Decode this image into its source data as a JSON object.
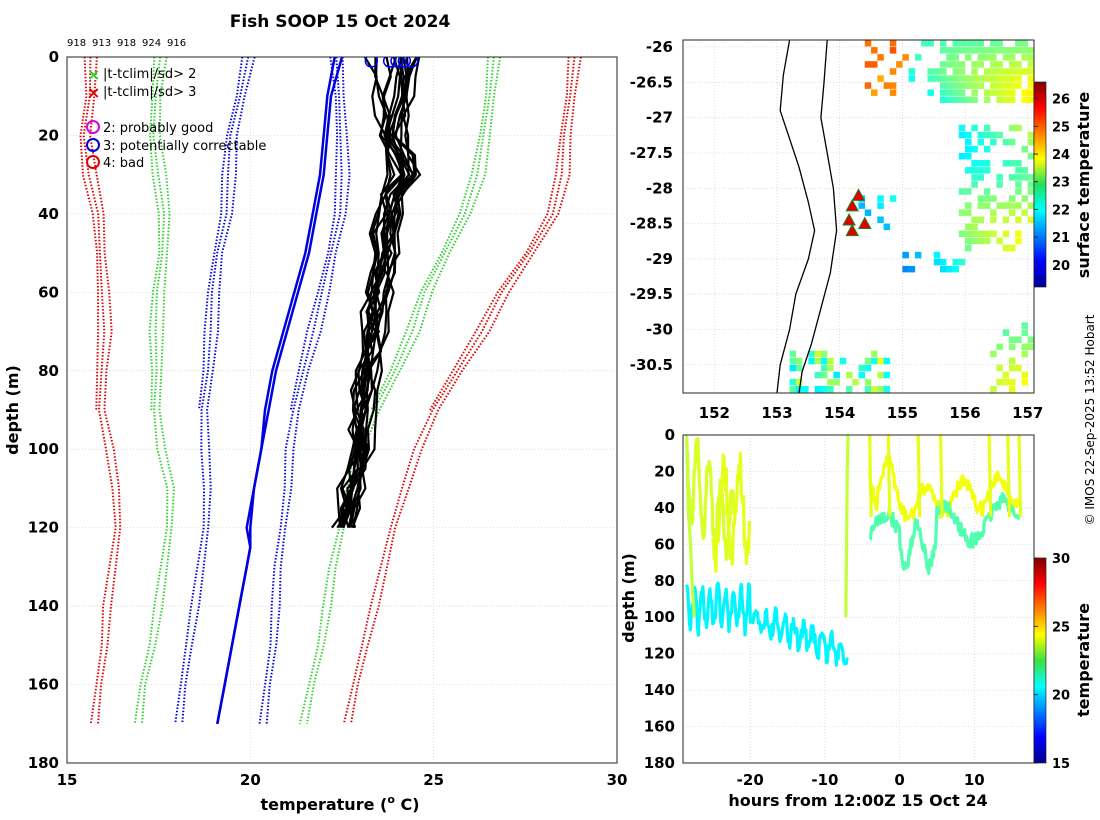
{
  "title": "Fish SOOP 15 Oct 2024",
  "credit": "© IMOS 22-Sep-2025 13:52 Hobart",
  "profile_ids": [
    "918",
    "913",
    "918",
    "924",
    "916"
  ],
  "legend": {
    "green_x": "|t-tclim|/sd> 2",
    "red_x": "|t-tclim|/sd> 3",
    "probably_good": "2: probably good",
    "correctable": "3: potentially correctable",
    "bad": "4: bad"
  },
  "colors": {
    "sd2": "#e00000",
    "sd1": "#30d030",
    "sd0": "#0000e0",
    "mean": "#0000e0",
    "data": "#000000",
    "marker": "#0000ff"
  },
  "chart_data": [
    {
      "type": "line",
      "title": "Fish SOOP 15 Oct 2024",
      "xlabel": "temperature (",
      "xlabel_sup": "o",
      "xlabel_end": " C)",
      "ylabel": "depth (m)",
      "xlim": [
        15,
        30
      ],
      "ylim": [
        180,
        0
      ],
      "xticks": [
        15,
        20,
        25,
        30
      ],
      "yticks": [
        0,
        20,
        40,
        60,
        80,
        100,
        120,
        140,
        160,
        180
      ],
      "depth_nodes": [
        0,
        10,
        20,
        30,
        40,
        50,
        60,
        70,
        80,
        90,
        100,
        110,
        120,
        130,
        140,
        150,
        160,
        170
      ],
      "climatology": [
        {
          "name": "minus 2 sd",
          "color": "#e00000",
          "style": "dotted",
          "offsets": [
            [
              -0.1,
              0.12,
              -0.1
            ],
            [
              0.45,
              0.55,
              0.65
            ],
            [
              0.35,
              0.5,
              0.6
            ]
          ],
          "values": [
            15.6,
            15.6,
            15.5,
            15.6,
            15.8,
            15.9,
            16.0,
            16.0,
            15.9,
            15.9,
            16.1,
            16.2,
            16.3,
            16.2,
            16.0,
            15.9,
            15.8,
            15.7
          ]
        },
        {
          "name": "minus 1 sd",
          "color": "#30d030",
          "style": "dotted",
          "values": [
            17.5,
            17.4,
            17.4,
            17.5,
            17.6,
            17.6,
            17.5,
            17.4,
            17.4,
            17.4,
            17.5,
            17.7,
            17.7,
            17.6,
            17.4,
            17.2,
            17.0,
            16.9
          ]
        },
        {
          "name": "mean",
          "color": "#0000e0",
          "style": "dotted",
          "values": [
            19.9,
            19.7,
            19.5,
            19.4,
            19.3,
            19.1,
            19.0,
            18.9,
            18.8,
            18.7,
            18.7,
            18.7,
            18.7,
            18.6,
            18.4,
            18.2,
            18.1,
            18.0
          ]
        },
        {
          "name": "plus 1 sd dotted blue",
          "color": "#0000e0",
          "style": "dotted",
          "values": [
            22.3,
            22.4,
            22.5,
            22.5,
            22.4,
            22.2,
            22.0,
            21.7,
            21.4,
            21.2,
            21.0,
            20.9,
            20.8,
            20.7,
            20.6,
            20.5,
            20.4,
            20.3
          ]
        },
        {
          "name": "plus 1 sd",
          "color": "#30d030",
          "style": "dotted",
          "values": [
            26.6,
            26.5,
            26.4,
            26.2,
            25.8,
            25.3,
            24.8,
            24.4,
            23.9,
            23.4,
            22.9,
            22.6,
            22.4,
            22.2,
            22.0,
            21.8,
            21.6,
            21.4
          ]
        },
        {
          "name": "plus 2 sd",
          "color": "#e00000",
          "style": "dotted",
          "values": [
            28.8,
            28.7,
            28.6,
            28.5,
            28.2,
            27.6,
            26.9,
            26.3,
            25.6,
            25.0,
            24.5,
            24.1,
            23.8,
            23.6,
            23.3,
            23.0,
            22.8,
            22.6
          ]
        }
      ],
      "model_profiles": {
        "color": "#0000e0",
        "depths": [
          0,
          10,
          20,
          30,
          40,
          50,
          60,
          70,
          80,
          90,
          100,
          110,
          120,
          125,
          130,
          140,
          150,
          160,
          170
        ],
        "profiles": [
          [
            22.3,
            22.1,
            22.0,
            21.9,
            21.7,
            21.5,
            21.2,
            20.9,
            20.6,
            20.4,
            20.3,
            20.1,
            20.0,
            20.0,
            19.9,
            19.7,
            19.5,
            19.3,
            19.1
          ],
          [
            22.5,
            22.2,
            22.1,
            22.0,
            21.8,
            21.6,
            21.3,
            21.0,
            20.7,
            20.5,
            20.3,
            20.1,
            19.9,
            20.0,
            19.9,
            19.7,
            19.5,
            19.3,
            19.1
          ]
        ]
      },
      "observed_profiles": {
        "color": "#000000",
        "depths": [
          0,
          5,
          10,
          15,
          20,
          25,
          30,
          35,
          40,
          45,
          50,
          55,
          60,
          65,
          70,
          75,
          80,
          85,
          90,
          95,
          100,
          105,
          110,
          115,
          120
        ],
        "profiles": [
          [
            23.3,
            23.3,
            23.4,
            23.5,
            23.6,
            23.7,
            23.8,
            23.5,
            23.4,
            23.3,
            23.4,
            23.3,
            23.2,
            23.1,
            23.1,
            23.0,
            22.9,
            22.9,
            22.8,
            22.8,
            22.7,
            22.6,
            22.5,
            22.4,
            22.3
          ],
          [
            23.8,
            23.8,
            23.7,
            23.7,
            23.6,
            23.9,
            24.0,
            23.7,
            23.6,
            23.5,
            23.5,
            23.4,
            23.3,
            23.2,
            23.2,
            23.1,
            23.0,
            22.9,
            22.9,
            22.8,
            22.8,
            22.7,
            22.6,
            22.5,
            22.4
          ],
          [
            24.0,
            24.0,
            23.9,
            23.9,
            23.8,
            24.1,
            24.2,
            23.8,
            23.7,
            23.6,
            23.6,
            23.5,
            23.4,
            23.4,
            23.3,
            23.2,
            23.1,
            23.0,
            23.0,
            22.9,
            22.9,
            22.8,
            22.7,
            22.6,
            22.5
          ],
          [
            24.2,
            24.2,
            24.1,
            24.0,
            23.9,
            24.2,
            24.3,
            23.9,
            23.8,
            23.7,
            23.7,
            23.6,
            23.5,
            23.5,
            23.4,
            23.3,
            23.2,
            23.1,
            23.1,
            23.0,
            23.0,
            22.9,
            22.8,
            22.7,
            22.6
          ],
          [
            24.4,
            24.3,
            24.2,
            24.1,
            24.0,
            24.3,
            24.4,
            24.0,
            23.9,
            23.8,
            23.8,
            23.7,
            23.6,
            23.6,
            23.5,
            23.4,
            23.3,
            23.2,
            23.2,
            23.1,
            23.1,
            23.0,
            22.9,
            22.8,
            22.7
          ]
        ],
        "markers_surface": [
          23.3,
          23.8,
          24.0,
          24.2,
          24.4
        ]
      }
    },
    {
      "type": "heatmap",
      "xlim": [
        151.5,
        157.1
      ],
      "ylim": [
        -30.9,
        -25.9
      ],
      "xticks": [
        152,
        153,
        154,
        155,
        156,
        157
      ],
      "yticks": [
        -26,
        -26.5,
        -27,
        -27.5,
        -28,
        -28.5,
        -29,
        -29.5,
        -30,
        -30.5
      ],
      "colorbar": {
        "label": "surface temperature",
        "ticks": [
          20,
          21,
          22,
          23,
          24,
          25,
          26
        ],
        "range": [
          19.2,
          26.6
        ]
      },
      "triangles": [
        [
          154.3,
          -28.1
        ],
        [
          154.2,
          -28.25
        ],
        [
          154.15,
          -28.45
        ],
        [
          154.4,
          -28.5
        ],
        [
          154.2,
          -28.6
        ]
      ]
    },
    {
      "type": "scatter",
      "xlabel": "hours from 12:00Z 15 Oct 24",
      "ylabel": "depth (m)",
      "xlim": [
        -29,
        18
      ],
      "ylim": [
        180,
        0
      ],
      "xticks": [
        -20,
        -10,
        0,
        10
      ],
      "yticks": [
        0,
        20,
        40,
        60,
        80,
        100,
        120,
        140,
        160,
        180
      ],
      "colorbar": {
        "label": "temperature",
        "ticks": [
          15,
          20,
          25,
          30
        ],
        "range": [
          15,
          30
        ]
      }
    }
  ]
}
